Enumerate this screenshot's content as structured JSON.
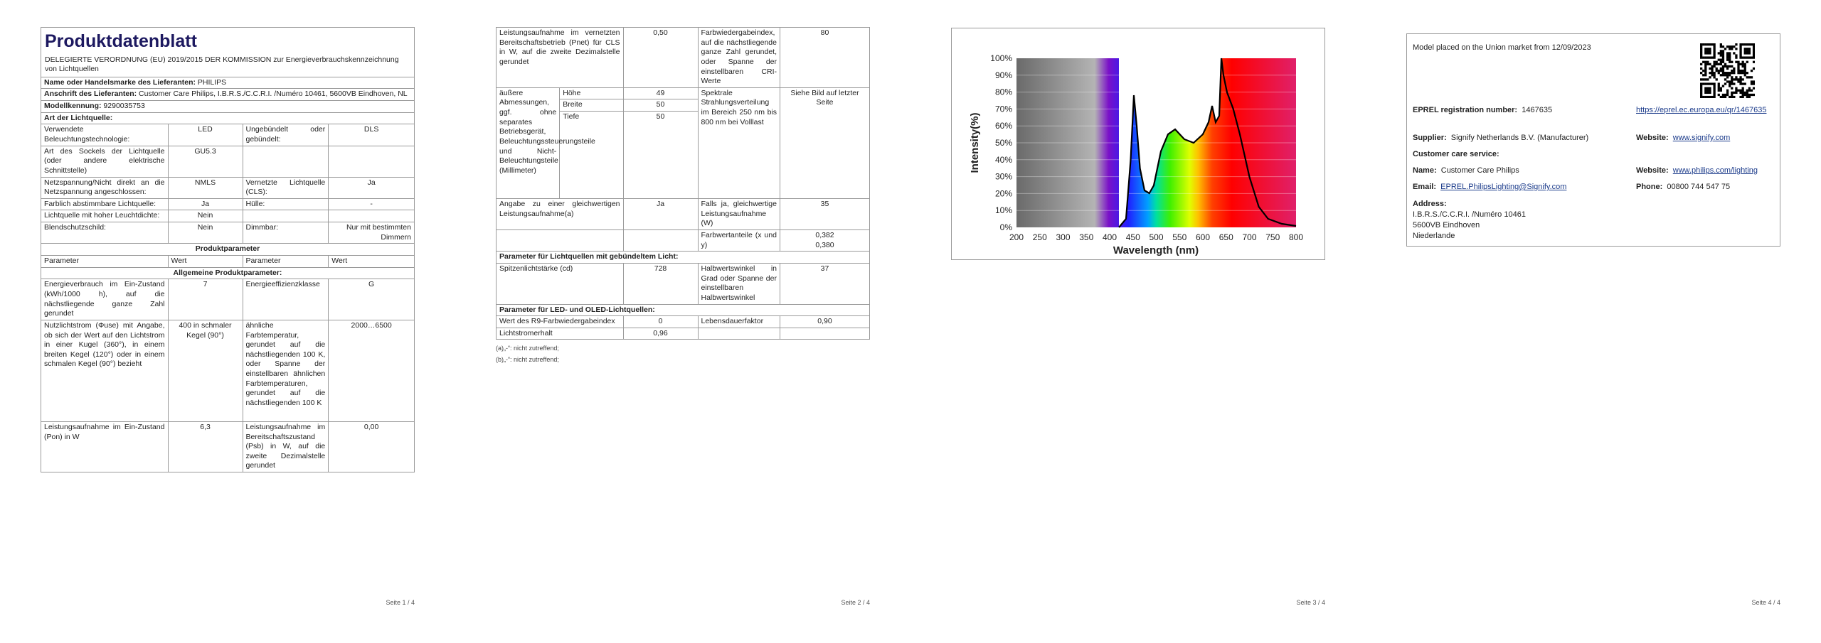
{
  "page1": {
    "title": "Produktdatenblatt",
    "regulation": "DELEGIERTE VERORDNUNG (EU) 2019/2015 DER KOMMISSION zur Energieverbrauchskennzeichnung von Lichtquellen",
    "supplier": {
      "label": "Name oder Handelsmarke des Lieferanten:",
      "value": "PHILIPS"
    },
    "address": {
      "label": "Anschrift des Lieferanten:",
      "value": "Customer Care Philips, I.B.R.S./C.C.R.I. /Numéro 10461, 5600VB Eindhoven, NL"
    },
    "model": {
      "label": "Modellkennung:",
      "value": "9290035753"
    },
    "light_source_heading": "Art der Lichtquelle:",
    "light_source_rows": [
      [
        "Verwendete Beleuchtungstechnologie:",
        "LED",
        "Ungebündelt oder gebündelt:",
        "DLS"
      ],
      [
        "Art des Sockels der Lichtquelle (oder andere elektrische Schnittstelle)",
        "GU5.3"
      ],
      [
        "Netzspannung/Nicht direkt an die Netzspannung angeschlossen:",
        "NMLS",
        "Vernetzte Lichtquelle (CLS):",
        "Ja"
      ],
      [
        "Farblich abstimmbare Lichtquelle:",
        "Ja",
        "Hülle:",
        "-"
      ],
      [
        "Lichtquelle mit hoher Leuchtdichte:",
        "Nein"
      ],
      [
        "Blendschutzschild:",
        "Nein",
        "Dimmbar:",
        "Nur mit bestimmten Dimmern"
      ]
    ],
    "product_params_heading": "Produktparameter",
    "columns": [
      "Parameter",
      "Wert",
      "Parameter",
      "Wert"
    ],
    "general_heading": "Allgemeine Produktparameter:",
    "param_rows": [
      [
        "Energieverbrauch im Ein-Zustand (kWh/1000 h), auf die nächstliegende ganze Zahl gerundet",
        "7",
        "Energieeffizienzklasse",
        "G"
      ],
      [
        "Nutzlichtstrom (Φuse) mit Angabe, ob sich der Wert auf den Lichtstrom in einer Kugel (360°), in einem breiten Kegel (120°) oder in einem schmalen Kegel (90°) bezieht",
        "400 in schmaler Kegel (90°)",
        "ähnliche Farbtemperatur, gerundet auf die nächstliegenden 100 K, oder Spanne der einstellbaren ähnlichen Farbtemperaturen, gerundet auf die nächstliegenden 100 K",
        "2000…6500"
      ],
      [
        "Leistungsaufnahme im Ein-Zustand (Pon) in W",
        "6,3",
        "Leistungsaufnahme im Bereitschaftszustand (Psb) in W, auf die zweite Dezimalstelle gerundet",
        "0,00"
      ]
    ],
    "footer": "Seite 1 / 4"
  },
  "page2": {
    "power_row": [
      "Leistungsaufnahme im vernetzten Bereitschaftsbetrieb (Pnet) für CLS in W, auf die zweite Dezimalstelle gerundet",
      "0,50",
      "Farbwiedergabeindex, auf die nächstliegende ganze Zahl gerundet, oder Spanne der einstellbaren CRI-Werte",
      "80"
    ],
    "dimensions": {
      "label": "äußere Abmessungen, ggf. ohne separates Betriebsgerät, Beleuchtungssteuerungsteile und Nicht-Beleuchtungsteile (Millimeter)",
      "items": [
        {
          "name": "Höhe",
          "value": "49"
        },
        {
          "name": "Breite",
          "value": "50"
        },
        {
          "name": "Tiefe",
          "value": "50"
        }
      ],
      "spectral_label": "Spektrale Strahlungsverteilung im Bereich 250 nm bis 800 nm bei Volllast",
      "spectral_value": "Siehe Bild auf letzter Seite"
    },
    "equivalent_row": [
      "Angabe zu einer gleichwertigen Leistungsaufnahme(a)",
      "Ja",
      "Falls ja, gleichwertige Leistungsaufnahme (W)",
      "35"
    ],
    "chromaticity": {
      "label": "Farbwertanteile (x und y)",
      "values": [
        "0,382",
        "0,380"
      ]
    },
    "directional_heading": "Parameter für Lichtquellen mit gebündeltem Licht:",
    "directional_row": [
      "Spitzenlichtstärke (cd)",
      "728",
      "Halbwertswinkel in Grad oder Spanne der einstellbaren Halbwertswinkel",
      "37"
    ],
    "led_heading": "Parameter für LED- und OLED-Lichtquellen:",
    "led_row": [
      "Wert des R9-Farbwiedergabeindex",
      "0",
      "Lebensdauerfaktor",
      "0,90"
    ],
    "lumen_maintenance": [
      "Lichtstromerhalt",
      "0,96"
    ],
    "notes": [
      "(a)„-“: nicht zutreffend;",
      "(b)„-“: nicht zutreffend;"
    ],
    "footer": "Seite 2 / 4"
  },
  "page3": {
    "spectrum": {
      "y_label": "Intensity(%)",
      "x_label": "Wavelength (nm)",
      "yticks": [
        "100%",
        "90%",
        "80%",
        "70%",
        "60%",
        "50%",
        "40%",
        "30%",
        "20%",
        "10%",
        "0%"
      ],
      "xticks": [
        "200",
        "250",
        "300",
        "350",
        "400",
        "450",
        "500",
        "550",
        "600",
        "650",
        "700",
        "750",
        "800"
      ]
    },
    "footer": "Seite 3 / 4"
  },
  "page4": {
    "market": "Model placed on the Union market from 12/09/2023",
    "eprel": {
      "label": "EPREL registration number:",
      "value": "1467635",
      "link": "https://eprel.ec.europa.eu/qr/1467635"
    },
    "supplier": {
      "label": "Supplier:",
      "value": "Signify Netherlands B.V. (Manufacturer)",
      "website_label": "Website:",
      "website": "www.signify.com"
    },
    "customer_care": "Customer care service:",
    "name": {
      "label": "Name:",
      "value": "Customer Care Philips",
      "website_label": "Website:",
      "website": "www.philips.com/lighting"
    },
    "email": {
      "label": "Email:",
      "value": "EPREL.PhilipsLighting@Signify.com",
      "phone_label": "Phone:",
      "phone": "00800 744 547 75"
    },
    "address": {
      "label": "Address:",
      "lines": [
        "I.B.R.S./C.C.R.I. /Numéro 10461",
        "5600VB Eindhoven",
        "Niederlande"
      ]
    },
    "footer": "Seite 4 / 4"
  }
}
